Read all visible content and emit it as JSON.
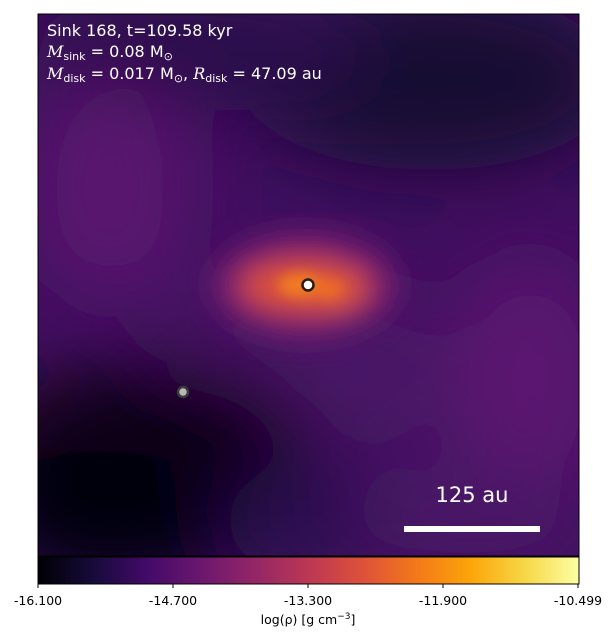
{
  "annotation": {
    "sink_line": "Sink 168, t=109.58 kyr",
    "msink_symbol": "M",
    "msink_sub": "sink",
    "msink_value": " = 0.08 M",
    "msink_unit_sub": "⊙",
    "mdisk_symbol": "M",
    "mdisk_sub": "disk",
    "mdisk_value": " = 0.017 M",
    "mdisk_unit_sub": "⊙",
    "rdisk_sep": ", ",
    "rdisk_symbol": "R",
    "rdisk_sub": "disk",
    "rdisk_value": " = 47.09 au"
  },
  "scalebar": {
    "label": "125 au"
  },
  "colorbar": {
    "ticks": [
      "-16.100",
      "-14.700",
      "-13.300",
      "-11.900",
      "-10.499"
    ],
    "label_prefix": "log(ρ) [g cm",
    "label_exp": "−3",
    "label_suffix": "]",
    "colormap": "inferno",
    "min": -16.1,
    "max": -10.499
  },
  "sinks": [
    {
      "role": "primary",
      "color": "#ffffff",
      "edge": "#2a1a10"
    },
    {
      "role": "secondary",
      "color": "#b8b8b8",
      "edge": "#3a3a3a"
    }
  ],
  "colors": {
    "background_dark": "#0c0720",
    "disk_glow": "#f07a2a"
  }
}
